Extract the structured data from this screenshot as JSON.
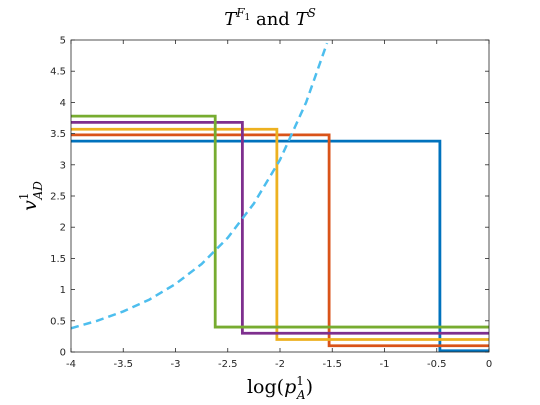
{
  "chart_data": {
    "type": "line",
    "title_parts": [
      "T",
      "F",
      "1",
      " and ",
      "T",
      "S"
    ],
    "xlabel_parts": [
      "log",
      "(",
      "p",
      "1",
      "A",
      ")"
    ],
    "ylabel_parts": [
      "v",
      "1",
      "AD"
    ],
    "xlim": [
      -4,
      0
    ],
    "ylim": [
      0,
      5
    ],
    "xticks": [
      "-4",
      "-3.5",
      "-3",
      "-2.5",
      "-2",
      "-1.5",
      "-1",
      "-0.5",
      "0"
    ],
    "yticks": [
      "0",
      "0.5",
      "1",
      "1.5",
      "2",
      "2.5",
      "3",
      "3.5",
      "4",
      "4.5",
      "5"
    ],
    "grid": false,
    "series": [
      {
        "color": "#0072BD",
        "style": "solid",
        "x": [
          -4,
          -0.47,
          -0.47,
          0
        ],
        "y": [
          3.38,
          3.38,
          0.02,
          0.02
        ]
      },
      {
        "color": "#D95319",
        "style": "solid",
        "x": [
          -4,
          -1.53,
          -1.53,
          0
        ],
        "y": [
          3.48,
          3.48,
          0.1,
          0.1
        ]
      },
      {
        "color": "#EDB120",
        "style": "solid",
        "x": [
          -4,
          -2.03,
          -2.03,
          0
        ],
        "y": [
          3.57,
          3.57,
          0.2,
          0.2
        ]
      },
      {
        "color": "#7E2F8E",
        "style": "solid",
        "x": [
          -4,
          -2.36,
          -2.36,
          0
        ],
        "y": [
          3.68,
          3.68,
          0.3,
          0.3
        ]
      },
      {
        "color": "#77AC30",
        "style": "solid",
        "x": [
          -4,
          -2.62,
          -2.62,
          0
        ],
        "y": [
          3.78,
          3.78,
          0.4,
          0.4
        ]
      },
      {
        "color": "#4DBEEE",
        "style": "dashed",
        "x": [
          -4,
          -3.75,
          -3.5,
          -3.25,
          -3,
          -2.75,
          -2.5,
          -2.25,
          -2,
          -1.75,
          -1.55
        ],
        "y": [
          0.38,
          0.5,
          0.65,
          0.84,
          1.09,
          1.41,
          1.83,
          2.38,
          3.08,
          4.0,
          4.95
        ]
      }
    ]
  }
}
